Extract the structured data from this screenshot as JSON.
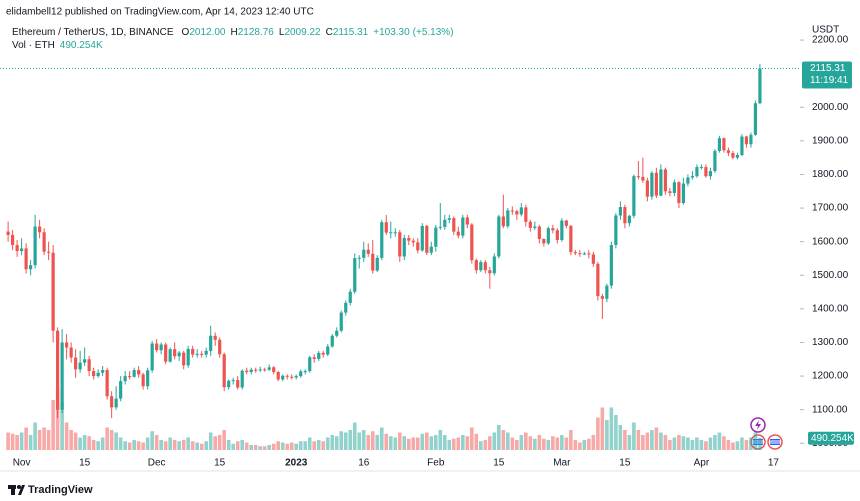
{
  "header": {
    "publisher": "elidambell12 published on TradingView.com, Apr 14, 2023 12:40 UTC",
    "brand": "TradingView"
  },
  "chart_data": {
    "type": "candlestick",
    "symbol": "Ethereum / TetherUS, 1D, BINANCE",
    "ohlc_legend": [
      {
        "key": "O",
        "value": {
          "value": 2012,
          "label": "2012.00"
        }
      },
      {
        "key": "H",
        "value": {
          "value": 2128.76,
          "label": "2128.76"
        }
      },
      {
        "key": "L",
        "value": {
          "value": 2009.22,
          "label": "2009.22"
        }
      },
      {
        "key": "C",
        "value": {
          "value": 2115.31,
          "label": "2115.31"
        }
      }
    ],
    "change": {
      "value": 103.3,
      "label": "+103.30"
    },
    "change_pct": {
      "value": 5.13,
      "label": "(+5.13%)"
    },
    "volume_legend": "Vol · ETH",
    "volume_last": {
      "value": 490254,
      "label": "490.254K"
    },
    "currency": "USDT",
    "last_price": 2115.31,
    "countdown": "11:19:41",
    "up_color": "#26a69a",
    "down_color": "#ef5350",
    "open": [
      1630,
      1620,
      1590,
      1572,
      1580,
      1518,
      1530,
      1645,
      1628,
      1570,
      1567,
      1335,
      1100,
      1300,
      1285,
      1255,
      1220,
      1240,
      1250,
      1215,
      1200,
      1210,
      1218,
      1140,
      1107,
      1133,
      1185,
      1200,
      1198,
      1218,
      1205,
      1170,
      1217,
      1297,
      1277,
      1294,
      1243,
      1280,
      1259,
      1270,
      1232,
      1281,
      1264,
      1266,
      1264,
      1275,
      1320,
      1308,
      1265,
      1167,
      1186,
      1188,
      1166,
      1216,
      1212,
      1219,
      1218,
      1220,
      1219,
      1226,
      1212,
      1190,
      1201,
      1198,
      1196,
      1200,
      1214,
      1215,
      1256,
      1251,
      1269,
      1264,
      1288,
      1320,
      1335,
      1389,
      1418,
      1451,
      1551,
      1552,
      1576,
      1564,
      1514,
      1552,
      1658,
      1627,
      1628,
      1628,
      1556,
      1611,
      1603,
      1598,
      1574,
      1647,
      1567,
      1585,
      1642,
      1644,
      1665,
      1670,
      1630,
      1618,
      1672,
      1651,
      1545,
      1515,
      1539,
      1515,
      1506,
      1556,
      1675,
      1646,
      1693,
      1691,
      1681,
      1702,
      1659,
      1641,
      1645,
      1608,
      1595,
      1640,
      1634,
      1605,
      1663,
      1647,
      1569,
      1566,
      1564,
      1565,
      1562,
      1534,
      1438,
      1430,
      1469,
      1590,
      1678,
      1703,
      1655,
      1677,
      1795,
      1793,
      1782,
      1734,
      1805,
      1737,
      1815,
      1750,
      1745,
      1777,
      1715,
      1773,
      1791,
      1795,
      1822,
      1822,
      1795,
      1810,
      1870,
      1908,
      1872,
      1864,
      1850,
      1858,
      1913,
      1890,
      1918,
      2012
    ],
    "high": [
      1660,
      1635,
      1605,
      1610,
      1595,
      1545,
      1680,
      1665,
      1640,
      1600,
      1590,
      1345,
      1340,
      1325,
      1300,
      1280,
      1275,
      1285,
      1260,
      1225,
      1220,
      1230,
      1225,
      1155,
      1170,
      1200,
      1215,
      1215,
      1225,
      1230,
      1210,
      1225,
      1305,
      1310,
      1300,
      1300,
      1285,
      1300,
      1275,
      1275,
      1290,
      1290,
      1280,
      1275,
      1285,
      1350,
      1330,
      1315,
      1270,
      1190,
      1195,
      1200,
      1220,
      1225,
      1225,
      1225,
      1228,
      1225,
      1235,
      1230,
      1215,
      1205,
      1205,
      1205,
      1205,
      1220,
      1220,
      1260,
      1265,
      1275,
      1275,
      1295,
      1325,
      1345,
      1395,
      1425,
      1460,
      1565,
      1560,
      1600,
      1595,
      1605,
      1560,
      1665,
      1680,
      1660,
      1640,
      1635,
      1620,
      1620,
      1610,
      1610,
      1655,
      1650,
      1600,
      1650,
      1715,
      1680,
      1680,
      1675,
      1645,
      1680,
      1680,
      1655,
      1550,
      1545,
      1545,
      1525,
      1565,
      1680,
      1740,
      1700,
      1705,
      1695,
      1715,
      1710,
      1665,
      1660,
      1650,
      1610,
      1645,
      1650,
      1640,
      1670,
      1665,
      1650,
      1575,
      1575,
      1570,
      1575,
      1570,
      1540,
      1445,
      1475,
      1600,
      1685,
      1720,
      1710,
      1680,
      1800,
      1840,
      1850,
      1790,
      1810,
      1820,
      1830,
      1820,
      1760,
      1785,
      1780,
      1790,
      1800,
      1810,
      1830,
      1830,
      1830,
      1820,
      1875,
      1915,
      1910,
      1880,
      1870,
      1865,
      1920,
      1915,
      1925,
      2020,
      2128.76
    ],
    "low": [
      1600,
      1575,
      1555,
      1560,
      1505,
      1500,
      1520,
      1610,
      1560,
      1545,
      1300,
      1075,
      1090,
      1250,
      1240,
      1195,
      1210,
      1230,
      1200,
      1190,
      1195,
      1200,
      1130,
      1075,
      1100,
      1125,
      1175,
      1190,
      1195,
      1195,
      1160,
      1160,
      1210,
      1270,
      1265,
      1235,
      1240,
      1250,
      1245,
      1220,
      1225,
      1255,
      1255,
      1255,
      1255,
      1260,
      1290,
      1255,
      1155,
      1160,
      1175,
      1160,
      1160,
      1205,
      1205,
      1210,
      1212,
      1213,
      1215,
      1205,
      1185,
      1185,
      1190,
      1190,
      1190,
      1195,
      1205,
      1210,
      1240,
      1245,
      1255,
      1260,
      1285,
      1315,
      1330,
      1380,
      1410,
      1445,
      1520,
      1540,
      1555,
      1505,
      1510,
      1545,
      1620,
      1610,
      1615,
      1540,
      1545,
      1590,
      1585,
      1565,
      1570,
      1560,
      1560,
      1570,
      1635,
      1635,
      1655,
      1620,
      1610,
      1610,
      1640,
      1535,
      1505,
      1510,
      1505,
      1460,
      1500,
      1550,
      1640,
      1640,
      1680,
      1665,
      1675,
      1645,
      1630,
      1635,
      1595,
      1585,
      1590,
      1625,
      1595,
      1600,
      1640,
      1560,
      1560,
      1555,
      1560,
      1550,
      1525,
      1425,
      1370,
      1420,
      1460,
      1580,
      1665,
      1640,
      1645,
      1670,
      1785,
      1775,
      1720,
      1725,
      1730,
      1735,
      1740,
      1735,
      1735,
      1700,
      1710,
      1765,
      1785,
      1790,
      1815,
      1790,
      1785,
      1805,
      1865,
      1865,
      1855,
      1845,
      1845,
      1855,
      1880,
      1880,
      1915,
      2009.22
    ],
    "close": [
      1620,
      1590,
      1572,
      1580,
      1518,
      1530,
      1645,
      1628,
      1570,
      1567,
      1335,
      1100,
      1300,
      1285,
      1255,
      1220,
      1240,
      1250,
      1215,
      1200,
      1210,
      1218,
      1140,
      1107,
      1133,
      1185,
      1200,
      1198,
      1218,
      1205,
      1170,
      1217,
      1297,
      1277,
      1294,
      1243,
      1280,
      1259,
      1270,
      1232,
      1281,
      1264,
      1266,
      1264,
      1275,
      1320,
      1308,
      1265,
      1167,
      1186,
      1188,
      1166,
      1216,
      1212,
      1219,
      1218,
      1220,
      1219,
      1226,
      1212,
      1190,
      1201,
      1198,
      1196,
      1200,
      1214,
      1215,
      1256,
      1251,
      1269,
      1264,
      1288,
      1320,
      1335,
      1389,
      1418,
      1451,
      1551,
      1552,
      1576,
      1564,
      1514,
      1552,
      1658,
      1627,
      1628,
      1628,
      1556,
      1611,
      1603,
      1598,
      1574,
      1647,
      1567,
      1585,
      1642,
      1644,
      1665,
      1670,
      1630,
      1618,
      1672,
      1651,
      1545,
      1515,
      1539,
      1515,
      1506,
      1556,
      1675,
      1646,
      1693,
      1691,
      1681,
      1702,
      1659,
      1641,
      1645,
      1608,
      1595,
      1640,
      1634,
      1605,
      1663,
      1647,
      1569,
      1566,
      1564,
      1565,
      1562,
      1534,
      1438,
      1430,
      1469,
      1590,
      1678,
      1703,
      1655,
      1677,
      1795,
      1793,
      1782,
      1734,
      1805,
      1737,
      1815,
      1750,
      1745,
      1777,
      1715,
      1773,
      1791,
      1795,
      1822,
      1822,
      1795,
      1810,
      1870,
      1908,
      1872,
      1864,
      1850,
      1858,
      1913,
      1890,
      1918,
      2012.01,
      2115.31
    ],
    "volume": [
      700000,
      650000,
      600000,
      700000,
      900000,
      600000,
      1100000,
      800000,
      900000,
      800000,
      2000000,
      2400000,
      1900000,
      1100000,
      800000,
      700000,
      500000,
      600000,
      550000,
      400000,
      350000,
      500000,
      900000,
      800000,
      700000,
      500000,
      350000,
      300000,
      400000,
      350000,
      300000,
      500000,
      750000,
      600000,
      400000,
      350000,
      500000,
      400000,
      350000,
      400000,
      500000,
      350000,
      300000,
      250000,
      350000,
      700000,
      550000,
      600000,
      800000,
      400000,
      250000,
      350000,
      400000,
      300000,
      200000,
      200000,
      150000,
      150000,
      200000,
      250000,
      350000,
      300000,
      250000,
      300000,
      250000,
      350000,
      350000,
      500000,
      350000,
      400000,
      350000,
      500000,
      600000,
      550000,
      750000,
      700000,
      800000,
      1100000,
      700000,
      800000,
      600000,
      750000,
      600000,
      900000,
      650000,
      550000,
      500000,
      700000,
      550000,
      450000,
      500000,
      500000,
      650000,
      700000,
      550000,
      600000,
      800000,
      600000,
      400000,
      450000,
      500000,
      600000,
      550000,
      900000,
      650000,
      350000,
      400000,
      550000,
      700000,
      1000000,
      800000,
      700000,
      500000,
      400000,
      600000,
      700000,
      550000,
      450000,
      600000,
      450000,
      400000,
      550000,
      500000,
      600000,
      500000,
      800000,
      400000,
      300000,
      400000,
      450000,
      600000,
      1300000,
      1700000,
      1200000,
      1700000,
      1400000,
      1000000,
      800000,
      600000,
      1100000,
      800000,
      600000,
      700000,
      800000,
      900000,
      700000,
      600000,
      400000,
      500000,
      600000,
      550000,
      500000,
      400000,
      500000,
      400000,
      350000,
      500000,
      600000,
      700000,
      550000,
      400000,
      300000,
      350000,
      500000,
      400000,
      500000,
      700000,
      490254
    ],
    "xlim": [
      -1.8,
      175.9
    ],
    "ylim": [
      980,
      2230
    ],
    "yticks": [
      {
        "value": 1000,
        "label": "1000.00"
      },
      {
        "value": 1100,
        "label": "1100.00"
      },
      {
        "value": 1200,
        "label": "1200.00"
      },
      {
        "value": 1300,
        "label": "1300.00"
      },
      {
        "value": 1400,
        "label": "1400.00"
      },
      {
        "value": 1500,
        "label": "1500.00"
      },
      {
        "value": 1600,
        "label": "1600.00"
      },
      {
        "value": 1700,
        "label": "1700.00"
      },
      {
        "value": 1800,
        "label": "1800.00"
      },
      {
        "value": 1900,
        "label": "1900.00"
      },
      {
        "value": 2000,
        "label": "2000.00"
      },
      {
        "value": 2200,
        "label": "2200.00"
      }
    ],
    "xticks": [
      {
        "value": 3,
        "label": "Nov"
      },
      {
        "value": 17,
        "label": "15"
      },
      {
        "value": 33,
        "label": "Dec"
      },
      {
        "value": 47,
        "label": "15"
      },
      {
        "value": 64,
        "label": "2023"
      },
      {
        "value": 79,
        "label": "16"
      },
      {
        "value": 95,
        "label": "Feb"
      },
      {
        "value": 109,
        "label": "15"
      },
      {
        "value": 123,
        "label": "Mar"
      },
      {
        "value": 137,
        "label": "15"
      },
      {
        "value": 154,
        "label": "Apr"
      },
      {
        "value": 170,
        "label": "17"
      }
    ]
  }
}
